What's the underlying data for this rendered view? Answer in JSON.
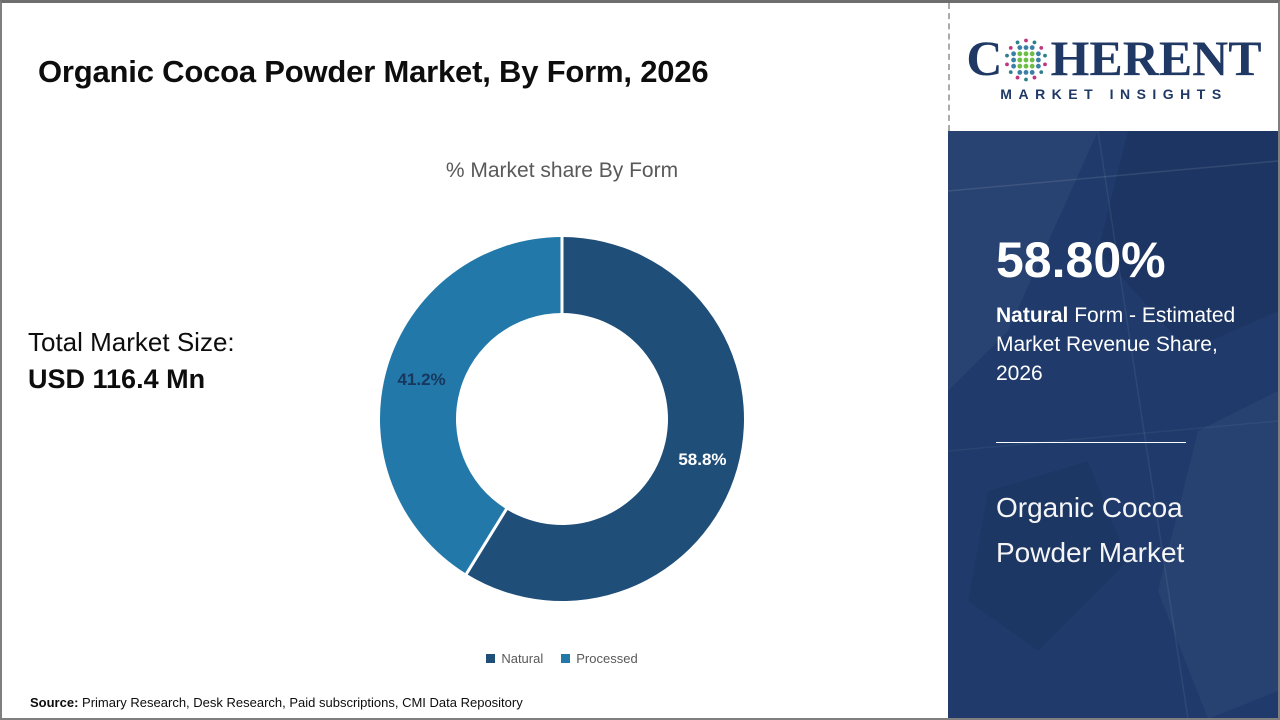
{
  "page": {
    "title": "Organic Cocoa Powder Market, By Form, 2026",
    "source_label": "Source:",
    "source_text": " Primary Research, Desk Research, Paid subscriptions, CMI Data Repository"
  },
  "logo": {
    "word_start": "C",
    "word_end": "HERENT",
    "subtitle": "MARKET INSIGHTS",
    "brand_color": "#1F3864"
  },
  "main": {
    "total_label": "Total Market Size:",
    "total_value": "USD 116.4 Mn"
  },
  "chart_data": {
    "type": "pie",
    "donut": true,
    "title": "% Market share By Form",
    "categories": [
      "Natural",
      "Processed"
    ],
    "values": [
      58.8,
      41.2
    ],
    "labels": [
      "58.8%",
      "41.2%"
    ],
    "slice_colors": [
      "#1F4E79",
      "#2278A8"
    ],
    "label_colors": [
      "#FFFFFF",
      "#17375E"
    ],
    "start_angle_deg": 0,
    "direction": "clockwise",
    "legend_position": "bottom"
  },
  "sidebar": {
    "background_color": "#1F3A6B",
    "stat_value": "58.80%",
    "stat_desc_bold": "Natural",
    "stat_desc_rest": " Form - Estimated Market Revenue Share, 2026",
    "market_name_line1": "Organic Cocoa",
    "market_name_line2": "Powder Market"
  }
}
